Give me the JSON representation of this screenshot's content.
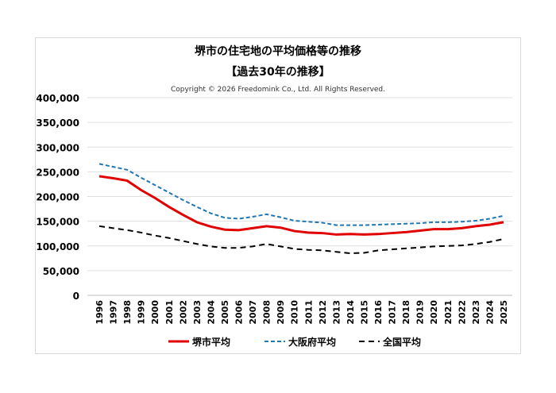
{
  "chart_data": {
    "type": "line",
    "title": "堺市の住宅地の平均価格等の推移",
    "subtitle": "【過去30年の推移】",
    "copyright": "Copyright © 2026 Freedomink Co., Ltd. All Rights Reserved.",
    "xlabel": "",
    "ylabel": "",
    "ylim": [
      0,
      400000
    ],
    "yticks": [
      "0",
      "50,000",
      "100,000",
      "150,000",
      "200,000",
      "250,000",
      "300,000",
      "350,000",
      "400,000"
    ],
    "grid": true,
    "legend": "bottom",
    "x": [
      "1996",
      "1997",
      "1998",
      "1999",
      "2000",
      "2001",
      "2002",
      "2003",
      "2004",
      "2005",
      "2006",
      "2007",
      "2008",
      "2009",
      "2010",
      "2011",
      "2012",
      "2013",
      "2014",
      "2015",
      "2016",
      "2017",
      "2018",
      "2019",
      "2020",
      "2021",
      "2022",
      "2023",
      "2024",
      "2025"
    ],
    "series": [
      {
        "name": "堺市平均",
        "color": "#e00000",
        "style": "solid",
        "values": [
          241000,
          237000,
          232000,
          213000,
          197000,
          179000,
          163000,
          148000,
          139000,
          133000,
          132000,
          136000,
          140000,
          137000,
          130000,
          127000,
          126000,
          123000,
          124000,
          123000,
          124000,
          126000,
          128000,
          131000,
          134000,
          134000,
          136000,
          140000,
          143000,
          148000
        ]
      },
      {
        "name": "大阪府平均",
        "color": "#1f77b4",
        "style": "dash",
        "values": [
          266000,
          260000,
          254000,
          238000,
          223000,
          208000,
          193000,
          179000,
          166000,
          157000,
          155000,
          159000,
          164000,
          158000,
          151000,
          149000,
          147000,
          142000,
          142000,
          142000,
          143000,
          144000,
          145000,
          146000,
          148000,
          148000,
          149000,
          151000,
          155000,
          161000
        ]
      },
      {
        "name": "全国平均",
        "color": "#000000",
        "style": "longdash",
        "values": [
          140000,
          136000,
          132000,
          127000,
          121000,
          116000,
          110000,
          104000,
          99000,
          96000,
          96000,
          99000,
          104000,
          99000,
          94000,
          92000,
          91000,
          88000,
          85000,
          86000,
          91000,
          93000,
          95000,
          97000,
          99000,
          100000,
          101000,
          104000,
          108000,
          114000
        ]
      }
    ]
  }
}
